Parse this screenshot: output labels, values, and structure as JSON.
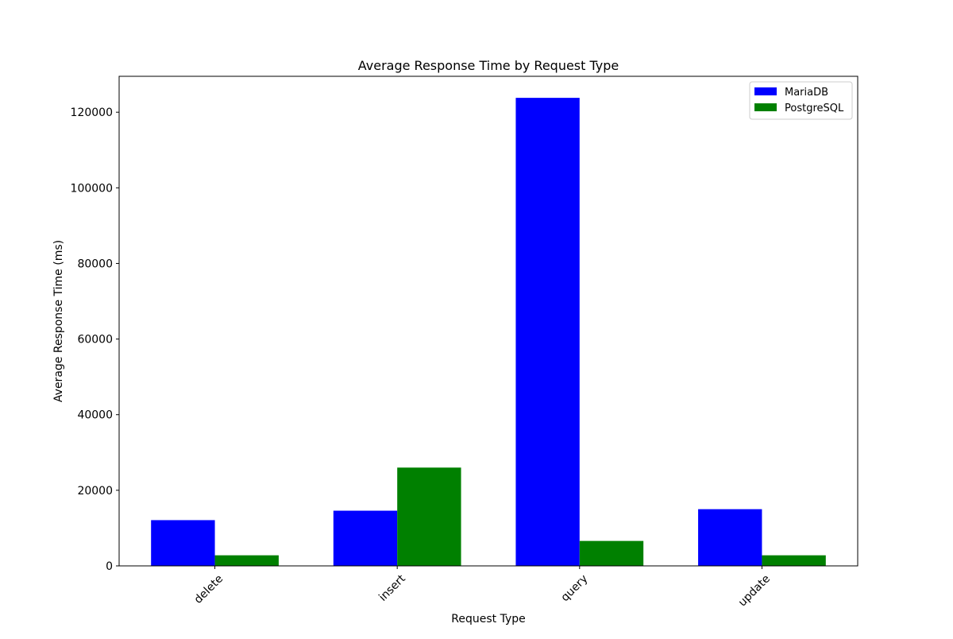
{
  "chart_data": {
    "type": "bar",
    "title": "Average Response Time by Request Type",
    "xlabel": "Request Type",
    "ylabel": "Average Response Time (ms)",
    "categories": [
      "delete",
      "insert",
      "query",
      "update"
    ],
    "series": [
      {
        "name": "MariaDB",
        "color": "#0000ff",
        "values": [
          12100,
          14600,
          123800,
          15000
        ]
      },
      {
        "name": "PostgreSQL",
        "color": "#008000",
        "values": [
          2800,
          26000,
          6600,
          2800
        ]
      }
    ],
    "ylim": [
      0,
      129500
    ],
    "yticks": [
      0,
      20000,
      40000,
      60000,
      80000,
      100000,
      120000
    ],
    "grid": false,
    "legend_position": "top-right",
    "x_tick_rotation_deg": 45
  }
}
